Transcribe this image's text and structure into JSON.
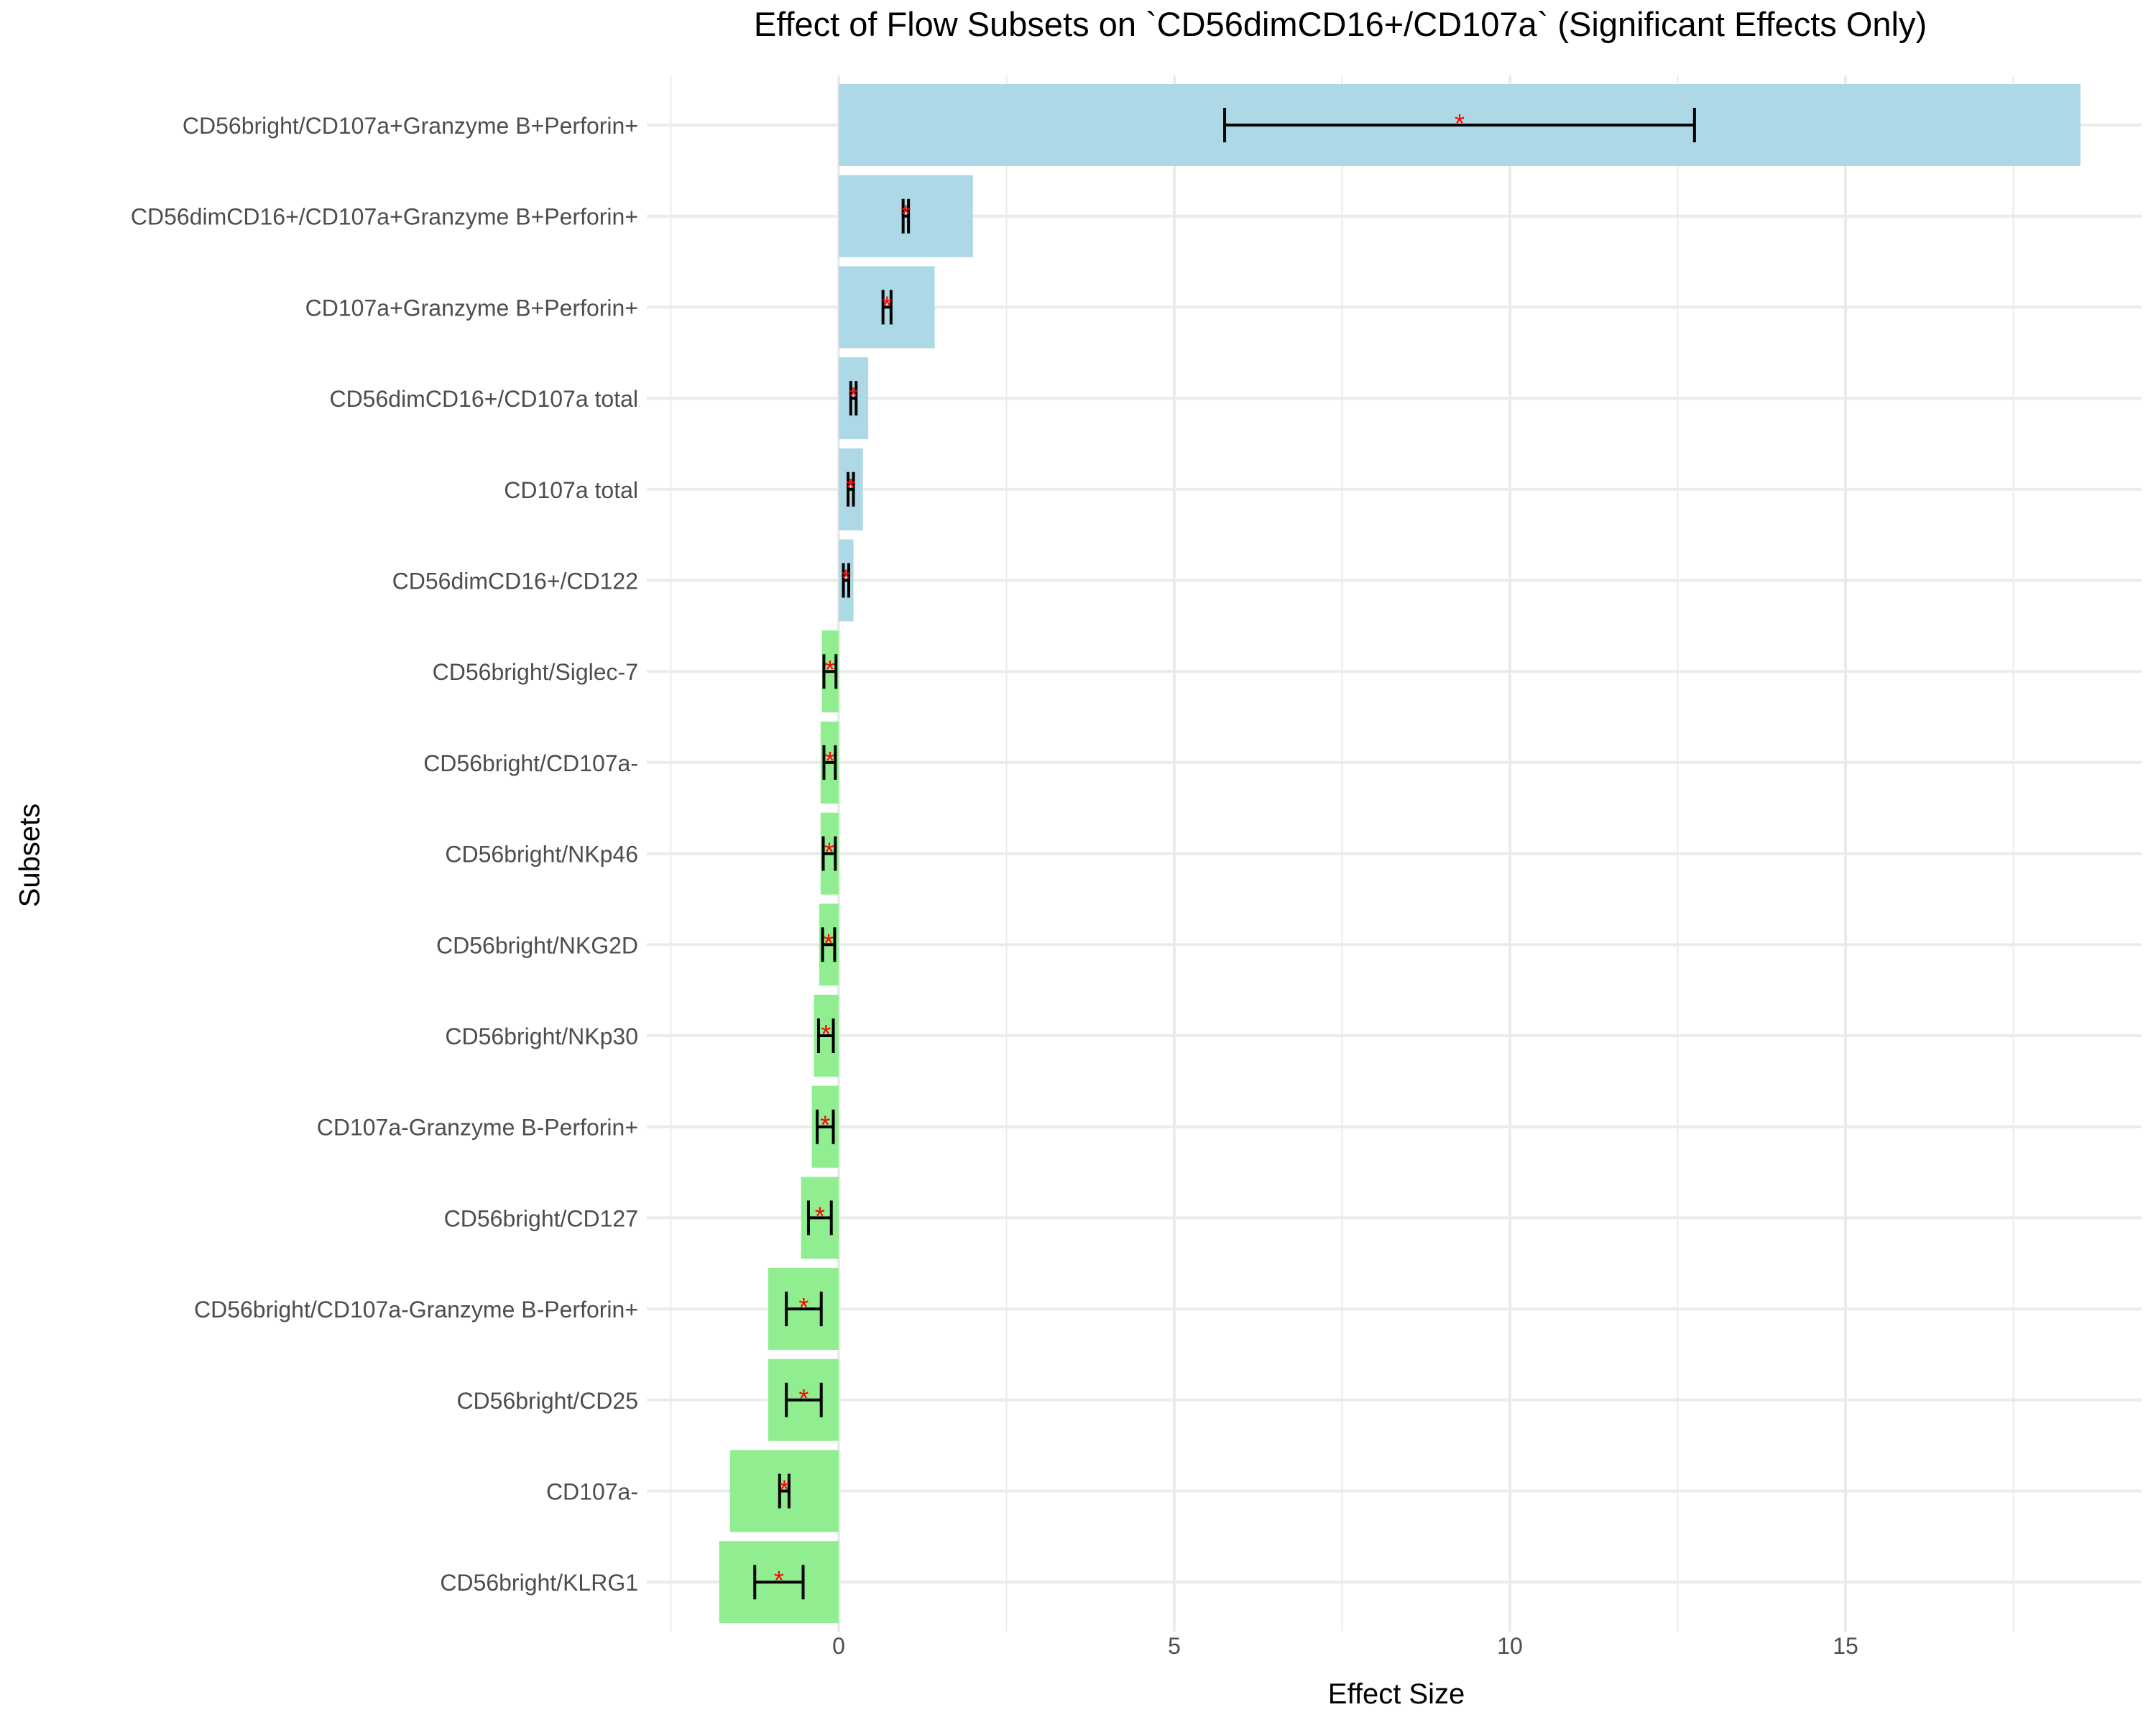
{
  "chart_data": {
    "type": "bar",
    "orientation": "horizontal",
    "title": "Effect of Flow Subsets on `CD56dimCD16+/CD107a` (Significant Effects Only)",
    "xlabel": "Effect Size",
    "ylabel": "Subsets",
    "xlim": [
      -2.5,
      19
    ],
    "x_ticks": [
      0,
      5,
      10,
      15
    ],
    "grid": true,
    "legend": "none",
    "significance_marker": "*",
    "colors": {
      "positive_bar": "#add8e6",
      "negative_bar": "#90ee90",
      "error_bar": "#000000",
      "marker": "#ff0000",
      "grid": "#ebebeb",
      "tick_text": "#4d4d4d"
    },
    "categories": [
      "CD56bright/CD107a+Granzyme B+Perforin+",
      "CD56dimCD16+/CD107a+Granzyme B+Perforin+",
      "CD107a+Granzyme B+Perforin+",
      "CD56dimCD16+/CD107a total",
      "CD107a total",
      "CD56dimCD16+/CD122",
      "CD56bright/Siglec-7",
      "CD56bright/CD107a-",
      "CD56bright/NKp46",
      "CD56bright/NKG2D",
      "CD56bright/NKp30",
      "CD107a-Granzyme B-Perforin+",
      "CD56bright/CD127",
      "CD56bright/CD107a-Granzyme B-Perforin+",
      "CD56bright/CD25",
      "CD107a-",
      "CD56bright/KLRG1"
    ],
    "values": [
      18.5,
      2.0,
      1.43,
      0.44,
      0.36,
      0.22,
      -0.25,
      -0.27,
      -0.27,
      -0.29,
      -0.37,
      -0.4,
      -0.56,
      -1.05,
      -1.05,
      -1.62,
      -1.78
    ],
    "point_estimates": [
      9.25,
      1.0,
      0.72,
      0.22,
      0.18,
      0.11,
      -0.13,
      -0.13,
      -0.14,
      -0.15,
      -0.19,
      -0.2,
      -0.28,
      -0.52,
      -0.52,
      -0.81,
      -0.89
    ],
    "ci_low": [
      5.75,
      0.96,
      0.66,
      0.18,
      0.14,
      0.07,
      -0.22,
      -0.22,
      -0.23,
      -0.24,
      -0.3,
      -0.32,
      -0.45,
      -0.78,
      -0.78,
      -0.88,
      -1.25
    ],
    "ci_high": [
      12.75,
      1.04,
      0.78,
      0.26,
      0.22,
      0.15,
      -0.04,
      -0.05,
      -0.05,
      -0.06,
      -0.08,
      -0.08,
      -0.11,
      -0.26,
      -0.26,
      -0.74,
      -0.53
    ]
  }
}
